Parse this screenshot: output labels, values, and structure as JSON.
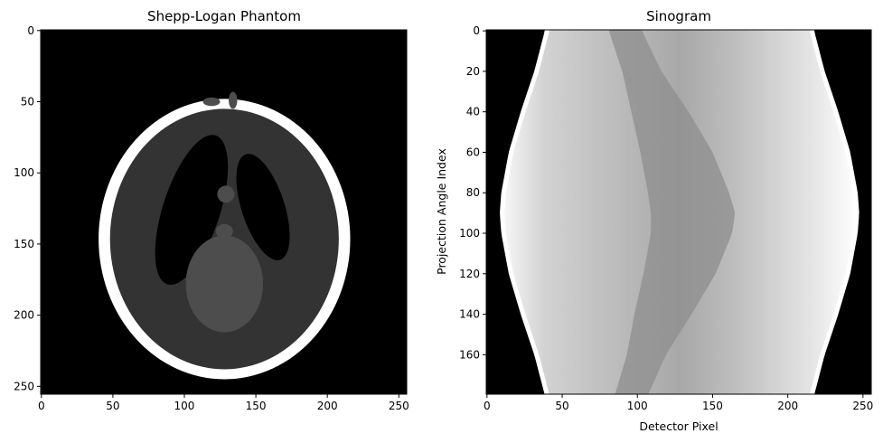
{
  "chart_data": [
    {
      "type": "heatmap",
      "title": "Shepp-Logan Phantom",
      "xlabel": "",
      "ylabel": "",
      "colormap": "gray",
      "xlim": [
        0,
        255
      ],
      "ylim": [
        255,
        0
      ],
      "xticks": [
        0,
        50,
        100,
        150,
        200,
        250
      ],
      "yticks": [
        0,
        50,
        100,
        150,
        200,
        250
      ],
      "ellipses": [
        {
          "name": "skull",
          "value": 1.0,
          "cx": 128,
          "cy": 146.5,
          "rx": 88,
          "ry": 98.5
        },
        {
          "name": "brain",
          "value": 0.2,
          "cx": 128,
          "cy": 146.5,
          "rx": 80,
          "ry": 91.5
        },
        {
          "name": "left-ventricle",
          "value": 0.0,
          "cx": 105,
          "cy": 126,
          "rx": 20,
          "ry": 55,
          "angle": 18
        },
        {
          "name": "right-ventricle",
          "value": 0.0,
          "cx": 155,
          "cy": 124,
          "rx": 15,
          "ry": 39,
          "angle": -18
        },
        {
          "name": "central-mass",
          "value": 0.3,
          "cx": 128,
          "cy": 178,
          "rx": 27,
          "ry": 34
        },
        {
          "name": "small-upper",
          "value": 0.3,
          "cx": 129,
          "cy": 115,
          "rx": 6,
          "ry": 6
        },
        {
          "name": "small-middle",
          "value": 0.3,
          "cx": 128,
          "cy": 141,
          "rx": 6,
          "ry": 5
        },
        {
          "name": "dot-left",
          "value": 0.3,
          "cx": 119,
          "cy": 50,
          "rx": 6,
          "ry": 3
        },
        {
          "name": "dot-right",
          "value": 0.3,
          "cx": 134,
          "cy": 49,
          "rx": 3,
          "ry": 6
        }
      ]
    },
    {
      "type": "heatmap",
      "title": "Sinogram",
      "xlabel": "Detector Pixel",
      "ylabel": "Projection Angle Index",
      "colormap": "gray",
      "xlim": [
        0,
        255
      ],
      "ylim": [
        180,
        0
      ],
      "xticks": [
        0,
        50,
        100,
        150,
        200,
        250
      ],
      "yticks": [
        0,
        20,
        40,
        60,
        80,
        100,
        120,
        140,
        160
      ],
      "outer_boundary": {
        "angles": [
          0,
          20,
          40,
          60,
          80,
          90,
          100,
          120,
          140,
          160,
          180
        ],
        "left": [
          40,
          33,
          24,
          16,
          11,
          10,
          11,
          16,
          24,
          33,
          40
        ],
        "right": [
          216,
          223,
          232,
          240,
          245,
          246,
          245,
          240,
          232,
          223,
          216
        ]
      },
      "dark_band": {
        "angles": [
          0,
          20,
          40,
          60,
          80,
          90,
          100,
          120,
          140,
          160,
          180
        ],
        "center": [
          92,
          103,
          115,
          126,
          134,
          137,
          136,
          128,
          117,
          106,
          96
        ],
        "half_width": [
          11,
          13,
          19,
          24,
          27,
          28,
          27,
          24,
          19,
          13,
          11
        ]
      }
    }
  ]
}
